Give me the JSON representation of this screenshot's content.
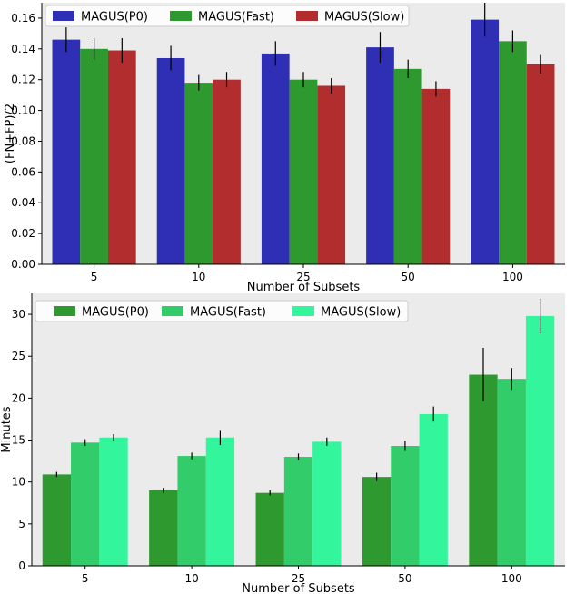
{
  "chart_data": [
    {
      "type": "bar",
      "title": "",
      "xlabel": "Number of Subsets",
      "ylabel": "(FN+FP)/2",
      "categories": [
        "5",
        "10",
        "25",
        "50",
        "100"
      ],
      "ylim": [
        0,
        0.17
      ],
      "yticks": [
        0.0,
        0.02,
        0.04,
        0.06,
        0.08,
        0.1,
        0.12,
        0.14,
        0.16
      ],
      "ytick_labels": [
        "0.00",
        "0.02",
        "0.04",
        "0.06",
        "0.08",
        "0.10",
        "0.12",
        "0.14",
        "0.16"
      ],
      "grid": false,
      "legend": "top",
      "background": "#ebebeb",
      "series": [
        {
          "name": "MAGUS(P0)",
          "color": "#2f2fb5",
          "values": [
            0.146,
            0.134,
            0.137,
            0.141,
            0.159
          ],
          "errors": [
            0.008,
            0.008,
            0.008,
            0.01,
            0.011
          ]
        },
        {
          "name": "MAGUS(Fast)",
          "color": "#2e992e",
          "values": [
            0.14,
            0.118,
            0.12,
            0.127,
            0.145
          ],
          "errors": [
            0.007,
            0.005,
            0.005,
            0.006,
            0.007
          ]
        },
        {
          "name": "MAGUS(Slow)",
          "color": "#b22d2d",
          "values": [
            0.139,
            0.12,
            0.116,
            0.114,
            0.13
          ],
          "errors": [
            0.008,
            0.005,
            0.005,
            0.005,
            0.006
          ]
        }
      ]
    },
    {
      "type": "bar",
      "title": "",
      "xlabel": "Number of Subsets",
      "ylabel": "Minutes",
      "categories": [
        "5",
        "10",
        "25",
        "50",
        "100"
      ],
      "ylim": [
        0,
        32.5
      ],
      "yticks": [
        0,
        5,
        10,
        15,
        20,
        25,
        30
      ],
      "ytick_labels": [
        "0",
        "5",
        "10",
        "15",
        "20",
        "25",
        "30"
      ],
      "grid": false,
      "legend": "top",
      "background": "#ebebeb",
      "series": [
        {
          "name": "MAGUS(P0)",
          "color": "#2e992e",
          "values": [
            10.9,
            9.0,
            8.7,
            10.6,
            22.8
          ],
          "errors": [
            0.3,
            0.3,
            0.3,
            0.5,
            3.2
          ]
        },
        {
          "name": "MAGUS(Fast)",
          "color": "#33cc6b",
          "values": [
            14.7,
            13.1,
            13.0,
            14.3,
            22.3
          ],
          "errors": [
            0.4,
            0.4,
            0.4,
            0.6,
            1.3
          ]
        },
        {
          "name": "MAGUS(Slow)",
          "color": "#33f59c",
          "values": [
            15.3,
            15.3,
            14.8,
            18.1,
            29.8
          ],
          "errors": [
            0.4,
            0.9,
            0.5,
            0.9,
            2.1
          ]
        }
      ]
    }
  ]
}
